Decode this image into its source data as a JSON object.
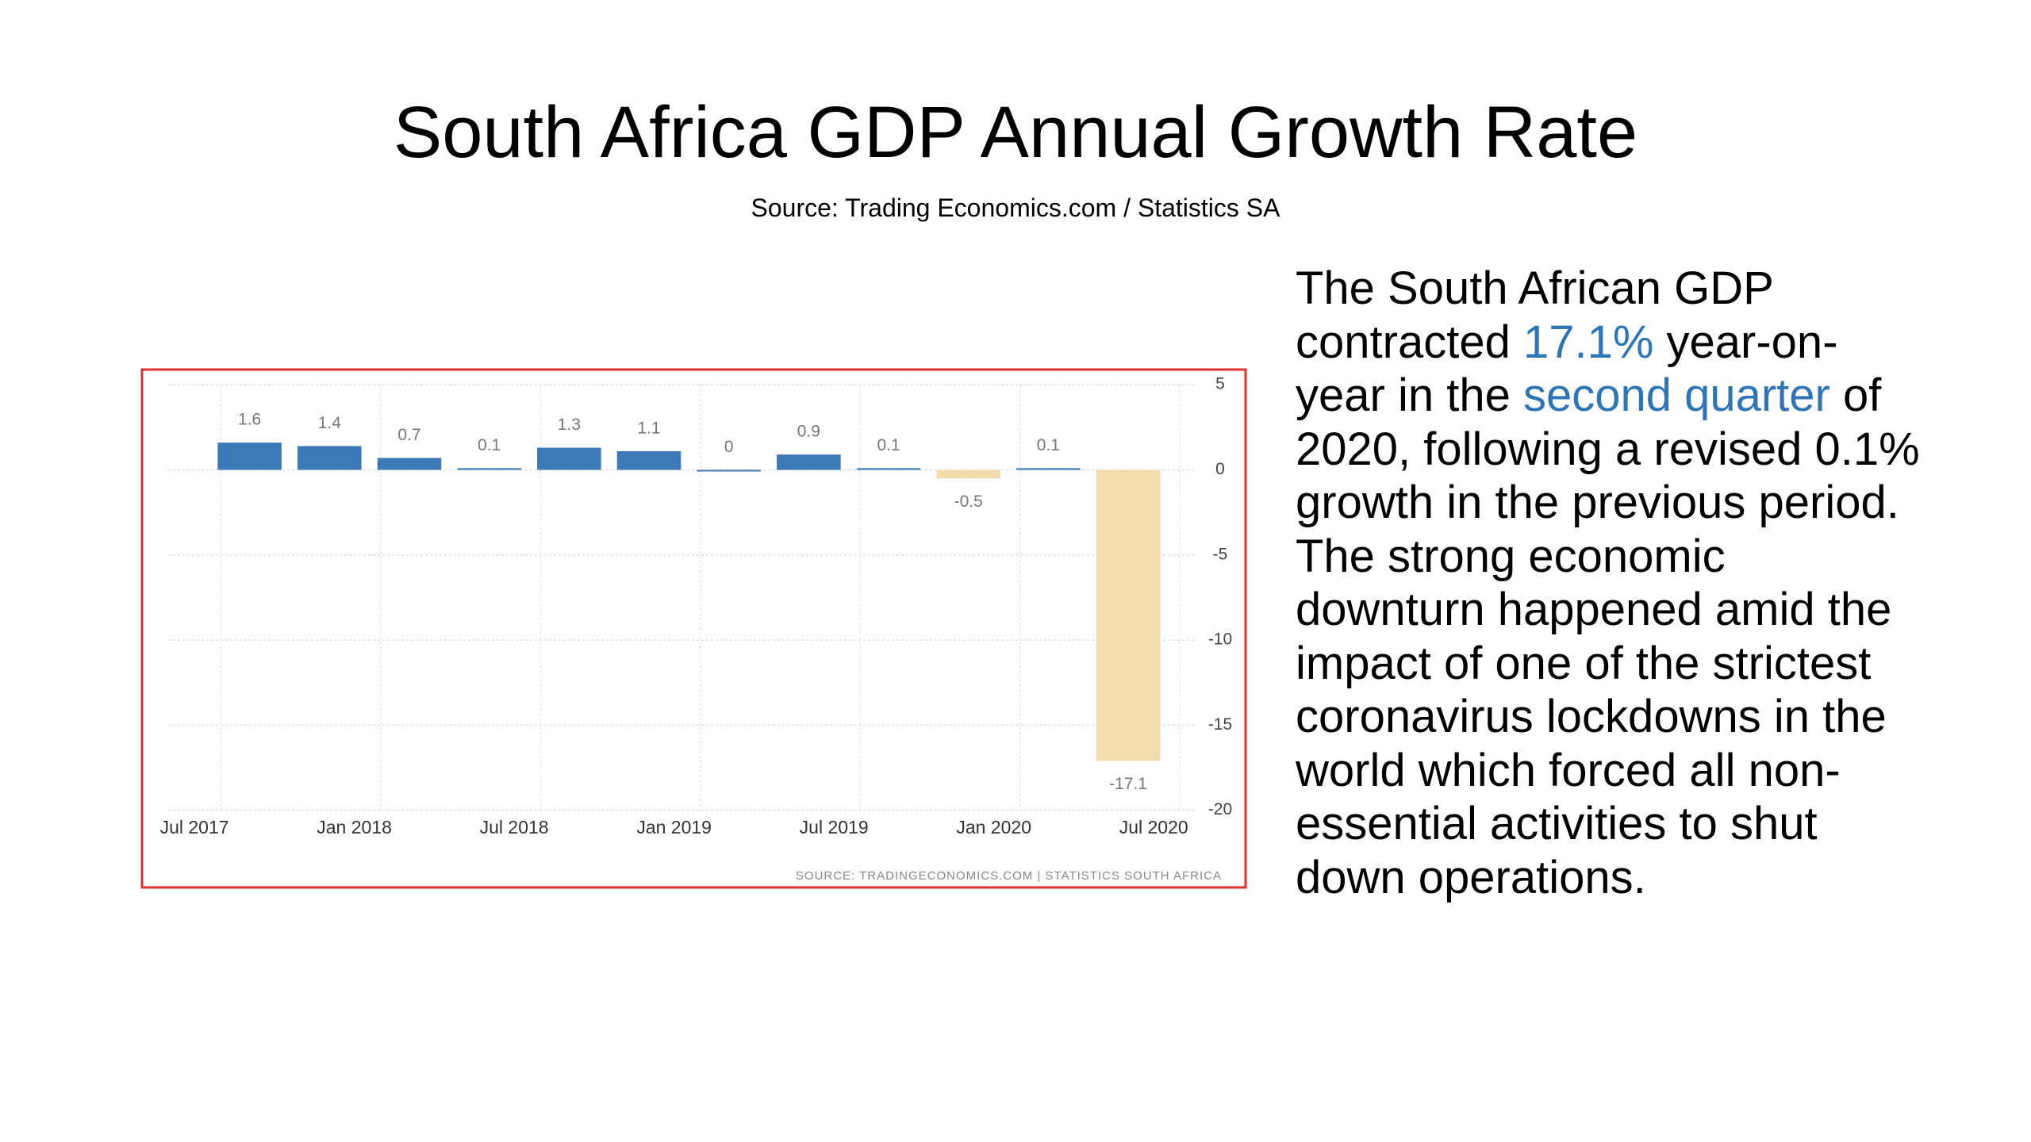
{
  "header": {
    "title": "South Africa GDP Annual Growth Rate",
    "subtitle": "Source: Trading Economics.com / Statistics SA"
  },
  "chart_data": {
    "type": "bar",
    "categories": [
      null,
      null,
      null,
      null,
      null,
      null,
      null,
      null,
      null,
      null,
      null,
      null
    ],
    "x_labels": [
      "Jul 2017",
      "Jan 2018",
      "Jul 2018",
      "Jan 2019",
      "Jul 2019",
      "Jan 2020",
      "Jul 2020"
    ],
    "values": [
      1.6,
      1.4,
      0.7,
      0.1,
      1.3,
      1.1,
      0,
      0.9,
      0.1,
      -0.5,
      0.1,
      -17.1
    ],
    "color": "#3d79b6",
    "negative_color": "#f3dcae",
    "ylim": [
      -20,
      5
    ],
    "yticks": [
      5,
      0,
      -5,
      -10,
      -15,
      -20
    ],
    "grid": true,
    "source": "SOURCE: TRADINGECONOMICS.COM | STATISTICS SOUTH AFRICA"
  },
  "text": {
    "parts": [
      "The South African GDP contracted ",
      "17.1%",
      " year-on-year in the ",
      "second quarter",
      " of 2020, following a revised 0.1% growth in the previous period. The strong economic downturn happened amid the impact of one of the strictest coronavirus lockdowns in the world which forced all non-essential activities to shut down operations."
    ]
  }
}
